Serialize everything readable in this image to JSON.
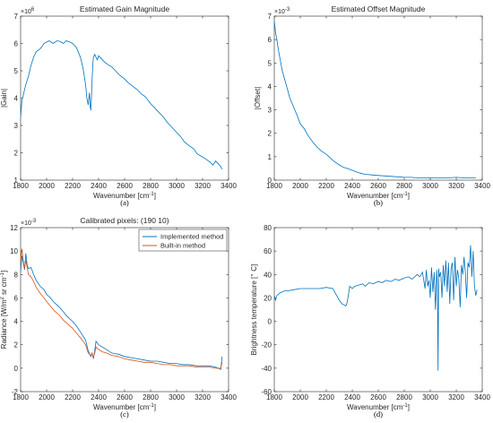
{
  "colors": {
    "blue": "#0072BD",
    "orange": "#D95319",
    "axis": "#262626"
  },
  "chart_data": [
    {
      "type": "line",
      "title": "Estimated Gain Magnitude",
      "xlabel": "Wavenumber [cm$^{-1}$]",
      "xlabel_parts": [
        "Wavenumber [cm",
        "-1",
        "]"
      ],
      "ylabel": "|Gain|",
      "caption": "(a)",
      "exponent": "× 10^6",
      "exponent_parts": [
        "×10",
        "6"
      ],
      "xlim": [
        1800,
        3400
      ],
      "ylim": [
        1,
        7
      ],
      "xticks": [
        1800,
        2000,
        2200,
        2400,
        2600,
        2800,
        3000,
        3200,
        3400
      ],
      "yticks": [
        1,
        2,
        3,
        4,
        5,
        6,
        7
      ],
      "grid": false,
      "series": [
        {
          "color": "#0072BD",
          "x": [
            1800,
            1810,
            1820,
            1840,
            1860,
            1880,
            1900,
            1920,
            1950,
            1980,
            2000,
            2020,
            2050,
            2080,
            2100,
            2130,
            2150,
            2180,
            2200,
            2230,
            2260,
            2280,
            2300,
            2310,
            2320,
            2330,
            2335,
            2340,
            2345,
            2350,
            2355,
            2360,
            2370,
            2380,
            2390,
            2400,
            2420,
            2450,
            2480,
            2500,
            2530,
            2560,
            2600,
            2630,
            2660,
            2700,
            2730,
            2760,
            2800,
            2830,
            2860,
            2900,
            2930,
            2960,
            3000,
            3030,
            3060,
            3100,
            3130,
            3160,
            3200,
            3230,
            3260,
            3280,
            3300,
            3320,
            3340,
            3350
          ],
          "y": [
            3.3,
            3.9,
            4.1,
            4.5,
            4.8,
            5.2,
            5.5,
            5.7,
            5.8,
            6.0,
            6.05,
            6.1,
            6.0,
            6.1,
            6.08,
            6.0,
            6.1,
            6.05,
            6.0,
            5.85,
            5.5,
            5.1,
            4.5,
            4.0,
            3.75,
            4.2,
            3.7,
            3.55,
            4.0,
            4.7,
            5.2,
            5.5,
            5.6,
            5.5,
            5.4,
            5.55,
            5.45,
            5.3,
            5.2,
            5.15,
            5.0,
            4.85,
            4.7,
            4.55,
            4.45,
            4.3,
            4.15,
            4.05,
            3.8,
            3.65,
            3.5,
            3.3,
            3.1,
            2.95,
            2.75,
            2.6,
            2.4,
            2.25,
            2.15,
            1.95,
            1.85,
            1.75,
            1.65,
            1.55,
            1.7,
            1.6,
            1.5,
            1.4
          ]
        }
      ]
    },
    {
      "type": "line",
      "title": "Estimated Offset Magnitude",
      "xlabel": "Wavenumber [cm$^{-1}$]",
      "xlabel_parts": [
        "Wavenumber [cm",
        "-1",
        "]"
      ],
      "ylabel": "|Offset|",
      "caption": "(b)",
      "exponent": "× 10^-3",
      "exponent_parts": [
        "×10",
        "-3"
      ],
      "xlim": [
        1800,
        3400
      ],
      "ylim": [
        0,
        7
      ],
      "xticks": [
        1800,
        2000,
        2200,
        2400,
        2600,
        2800,
        3000,
        3200,
        3400
      ],
      "yticks": [
        0,
        1,
        2,
        3,
        4,
        5,
        6,
        7
      ],
      "grid": false,
      "series": [
        {
          "color": "#0072BD",
          "x": [
            1800,
            1810,
            1820,
            1830,
            1840,
            1850,
            1860,
            1880,
            1900,
            1920,
            1950,
            1980,
            2000,
            2030,
            2060,
            2100,
            2130,
            2160,
            2200,
            2230,
            2260,
            2300,
            2330,
            2360,
            2400,
            2430,
            2460,
            2500,
            2550,
            2600,
            2650,
            2700,
            2750,
            2800,
            2850,
            2900,
            2950,
            3000,
            3050,
            3100,
            3150,
            3200,
            3250,
            3300,
            3350
          ],
          "y": [
            6.8,
            6.3,
            6.0,
            5.6,
            5.3,
            5.0,
            4.7,
            4.3,
            3.9,
            3.5,
            3.1,
            2.7,
            2.4,
            2.2,
            1.9,
            1.6,
            1.4,
            1.25,
            1.1,
            0.95,
            0.8,
            0.65,
            0.55,
            0.5,
            0.42,
            0.35,
            0.3,
            0.25,
            0.22,
            0.2,
            0.18,
            0.16,
            0.14,
            0.12,
            0.12,
            0.1,
            0.1,
            0.1,
            0.1,
            0.1,
            0.1,
            0.12,
            0.1,
            0.1,
            0.1
          ]
        }
      ]
    },
    {
      "type": "line",
      "title": "Calibrated pixels: (190    10)",
      "xlabel": "Wavenumber [cm$^{-1}$]",
      "xlabel_parts": [
        "Wavenumber [cm",
        "-1",
        "]"
      ],
      "ylabel": "Radiance [W/m$^2$ sr cm$^{-1}$]",
      "ylabel_parts": [
        "Radiance [W/m",
        "2",
        " sr cm",
        "-1",
        "]"
      ],
      "caption": "(c)",
      "exponent": "× 10^-3",
      "exponent_parts": [
        "×10",
        "-3"
      ],
      "xlim": [
        1800,
        3400
      ],
      "ylim": [
        -2,
        12
      ],
      "xticks": [
        1800,
        2000,
        2200,
        2400,
        2600,
        2800,
        3000,
        3200,
        3400
      ],
      "yticks": [
        -2,
        0,
        2,
        4,
        6,
        8,
        10,
        12
      ],
      "grid": false,
      "legend": "top-right",
      "series": [
        {
          "name": "Implemented method",
          "color": "#0072BD",
          "x": [
            1800,
            1810,
            1820,
            1830,
            1840,
            1850,
            1860,
            1880,
            1900,
            1920,
            1950,
            1980,
            2000,
            2030,
            2060,
            2100,
            2130,
            2160,
            2200,
            2230,
            2260,
            2300,
            2320,
            2340,
            2350,
            2360,
            2370,
            2380,
            2400,
            2430,
            2460,
            2500,
            2550,
            2600,
            2650,
            2700,
            2750,
            2800,
            2850,
            2900,
            2950,
            3000,
            3050,
            3100,
            3150,
            3200,
            3250,
            3300,
            3340,
            3350
          ],
          "y": [
            8.2,
            9.6,
            9.0,
            8.4,
            9.8,
            8.8,
            8.5,
            8.6,
            8.0,
            7.5,
            7.0,
            6.7,
            6.3,
            6.0,
            5.6,
            5.2,
            4.8,
            4.4,
            4.0,
            3.6,
            3.1,
            2.4,
            1.5,
            1.0,
            1.3,
            0.8,
            1.5,
            2.3,
            2.0,
            1.8,
            1.6,
            1.3,
            1.2,
            1.0,
            0.9,
            0.8,
            0.7,
            0.6,
            0.6,
            0.5,
            0.4,
            0.4,
            0.3,
            0.3,
            0.2,
            0.2,
            0.2,
            0.1,
            -0.1,
            1.0
          ]
        },
        {
          "name": "Built-in method",
          "color": "#D95319",
          "x": [
            1800,
            1810,
            1820,
            1830,
            1840,
            1850,
            1860,
            1880,
            1900,
            1920,
            1950,
            1980,
            2000,
            2030,
            2060,
            2100,
            2130,
            2160,
            2200,
            2230,
            2260,
            2300,
            2320,
            2340,
            2350,
            2360,
            2370,
            2380,
            2400,
            2430,
            2460,
            2500,
            2550,
            2600,
            2650,
            2700,
            2750,
            2800,
            2850,
            2900,
            2950,
            3000,
            3050,
            3100,
            3150,
            3200,
            3250,
            3300,
            3340,
            3350
          ],
          "y": [
            9.0,
            10.2,
            9.2,
            8.5,
            9.2,
            8.6,
            8.0,
            7.8,
            7.4,
            6.9,
            6.4,
            6.0,
            5.7,
            5.3,
            4.9,
            4.5,
            4.1,
            3.8,
            3.4,
            3.0,
            2.6,
            2.0,
            1.3,
            1.1,
            1.2,
            0.9,
            1.3,
            1.8,
            1.6,
            1.4,
            1.3,
            1.1,
            1.0,
            0.8,
            0.7,
            0.6,
            0.5,
            0.5,
            0.4,
            0.3,
            0.3,
            0.2,
            0.2,
            0.2,
            0.1,
            0.1,
            0.1,
            0.0,
            0.0,
            0.5
          ]
        }
      ]
    },
    {
      "type": "line",
      "title": "",
      "xlabel": "Wavenumber [cm$^{-1}$]",
      "xlabel_parts": [
        "Wavenumber [cm",
        "-1",
        "]"
      ],
      "ylabel": "Brightness temperature [$^\\circ$ C]",
      "ylabel_parts": [
        "Brightness temperature [",
        "∘",
        " C]"
      ],
      "caption": "(d)",
      "xlim": [
        1800,
        3400
      ],
      "ylim": [
        -60,
        80
      ],
      "xticks": [
        1800,
        2000,
        2200,
        2400,
        2600,
        2800,
        3000,
        3200,
        3400
      ],
      "yticks": [
        -60,
        -40,
        -20,
        0,
        20,
        40,
        60,
        80
      ],
      "grid": false,
      "series": [
        {
          "color": "#0072BD",
          "x": [
            1800,
            1810,
            1820,
            1840,
            1860,
            1880,
            1900,
            1950,
            2000,
            2050,
            2100,
            2150,
            2200,
            2250,
            2280,
            2300,
            2320,
            2340,
            2350,
            2360,
            2370,
            2380,
            2400,
            2420,
            2450,
            2480,
            2500,
            2530,
            2560,
            2600,
            2630,
            2660,
            2700,
            2730,
            2760,
            2800,
            2830,
            2860,
            2900,
            2920,
            2940,
            2960,
            2970,
            2980,
            2990,
            3000,
            3010,
            3020,
            3030,
            3040,
            3050,
            3055,
            3060,
            3065,
            3070,
            3080,
            3090,
            3100,
            3110,
            3120,
            3130,
            3140,
            3150,
            3160,
            3170,
            3180,
            3190,
            3200,
            3210,
            3220,
            3230,
            3240,
            3250,
            3260,
            3270,
            3280,
            3290,
            3300,
            3310,
            3320,
            3330,
            3340,
            3350,
            3360
          ],
          "y": [
            22,
            18,
            22,
            24,
            25,
            26,
            26,
            27,
            28,
            28,
            28,
            28,
            29,
            28,
            22,
            18,
            15,
            14,
            13,
            16,
            22,
            30,
            28,
            30,
            31,
            32,
            30,
            33,
            32,
            34,
            33,
            35,
            34,
            36,
            35,
            37,
            38,
            36,
            40,
            38,
            42,
            28,
            44,
            30,
            35,
            20,
            46,
            25,
            42,
            10,
            44,
            30,
            -42,
            45,
            38,
            42,
            20,
            48,
            30,
            52,
            25,
            50,
            15,
            45,
            50,
            18,
            55,
            30,
            44,
            36,
            12,
            48,
            40,
            55,
            42,
            20,
            50,
            46,
            65,
            38,
            60,
            30,
            22,
            27
          ]
        }
      ]
    }
  ]
}
